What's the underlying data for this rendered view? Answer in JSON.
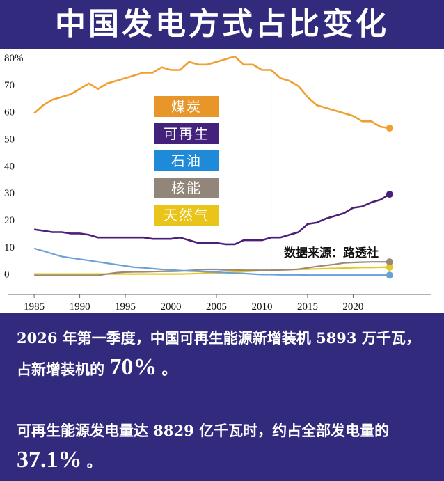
{
  "title": "中国发电方式占比变化",
  "chart_data": {
    "type": "line",
    "ylim": [
      -5,
      80
    ],
    "xlim": [
      1984,
      2026
    ],
    "y_ticks": [
      "80%",
      "70",
      "60",
      "50",
      "40",
      "30",
      "20",
      "10",
      "0"
    ],
    "y_tick_values": [
      80,
      70,
      60,
      50,
      40,
      30,
      20,
      10,
      0
    ],
    "x_ticks": [
      "1985",
      "1990",
      "1995",
      "2000",
      "2005",
      "2010",
      "2015",
      "2020"
    ],
    "x_tick_values": [
      1985,
      1990,
      1995,
      2000,
      2005,
      2010,
      2015,
      2020
    ],
    "marker_year": 2011,
    "x": [
      1985,
      1986,
      1987,
      1988,
      1989,
      1990,
      1991,
      1992,
      1993,
      1994,
      1995,
      1996,
      1997,
      1998,
      1999,
      2000,
      2001,
      2002,
      2003,
      2004,
      2005,
      2006,
      2007,
      2008,
      2009,
      2010,
      2011,
      2012,
      2013,
      2014,
      2015,
      2016,
      2017,
      2018,
      2019,
      2020,
      2021,
      2022,
      2023,
      2024
    ],
    "series": [
      {
        "name": "煤炭",
        "color": "#f0a030",
        "values": [
          60,
          63,
          65,
          66,
          67,
          69,
          71,
          69,
          71,
          72,
          73,
          74,
          75,
          75,
          77,
          76,
          76,
          79,
          78,
          78,
          79,
          80,
          81,
          78,
          78,
          76,
          76,
          73,
          72,
          70,
          66,
          63,
          62,
          61,
          60,
          59,
          57,
          57,
          55,
          54.5
        ]
      },
      {
        "name": "可再生",
        "color": "#4a1e7a",
        "values": [
          17,
          16.5,
          16,
          16,
          15.5,
          15.5,
          15,
          14,
          14,
          14,
          14,
          14,
          14,
          13.5,
          13.5,
          13.5,
          14,
          13,
          12,
          12,
          12,
          11.5,
          11.5,
          13,
          13,
          13,
          14,
          14,
          15,
          16,
          19,
          19.5,
          21,
          22,
          23,
          25,
          25.5,
          27,
          28,
          30
        ]
      },
      {
        "name": "石油",
        "color": "#6aa0d8",
        "values": [
          10,
          9,
          8,
          7,
          6.5,
          6,
          5.5,
          5,
          4.5,
          4,
          3.5,
          3,
          2.8,
          2.5,
          2.2,
          2,
          1.8,
          1.6,
          1.5,
          1.3,
          1.2,
          1,
          0.8,
          0.7,
          0.5,
          0.3,
          0.3,
          0.2,
          0.2,
          0.2,
          0.1,
          0.1,
          0.1,
          0.1,
          0.1,
          0.1,
          0.1,
          0.1,
          0.1,
          0.1
        ]
      },
      {
        "name": "核能",
        "color": "#9a8878",
        "values": [
          0,
          0,
          0,
          0,
          0,
          0,
          0,
          0,
          0.5,
          1,
          1.2,
          1.3,
          1.3,
          1.4,
          1.5,
          1.5,
          1.6,
          1.8,
          2,
          2.2,
          2.2,
          2,
          2,
          1.9,
          1.9,
          1.9,
          1.9,
          2,
          2.1,
          2.3,
          2.8,
          3.3,
          3.7,
          4.1,
          4.6,
          4.8,
          4.9,
          5,
          5,
          5
        ]
      },
      {
        "name": "天然气",
        "color": "#e8c820",
        "values": [
          0.5,
          0.5,
          0.5,
          0.5,
          0.5,
          0.5,
          0.5,
          0.5,
          0.5,
          0.5,
          0.5,
          0.5,
          0.5,
          0.5,
          0.5,
          0.5,
          0.5,
          0.6,
          0.7,
          0.8,
          0.9,
          1,
          1.2,
          1.4,
          1.6,
          1.8,
          1.9,
          2,
          2.1,
          2.2,
          2.3,
          2.4,
          2.5,
          2.6,
          2.7,
          2.8,
          2.9,
          2.9,
          3,
          3
        ]
      }
    ]
  },
  "legend_colors": [
    "#e8962a",
    "#42227a",
    "#1e8ad8",
    "#928579",
    "#e9c41a"
  ],
  "source_text": "数据来源：路透社",
  "para1": {
    "before": "2026 年第一季度，中国可再生能源新增装机 5893 万千瓦，占新增装机的 ",
    "highlight": "70%",
    "after": " 。"
  },
  "para2": {
    "before": "可再生能源发电量达 8829 亿千瓦时，约占全部发电量的 ",
    "highlight": "37.1%",
    "after": " 。"
  }
}
